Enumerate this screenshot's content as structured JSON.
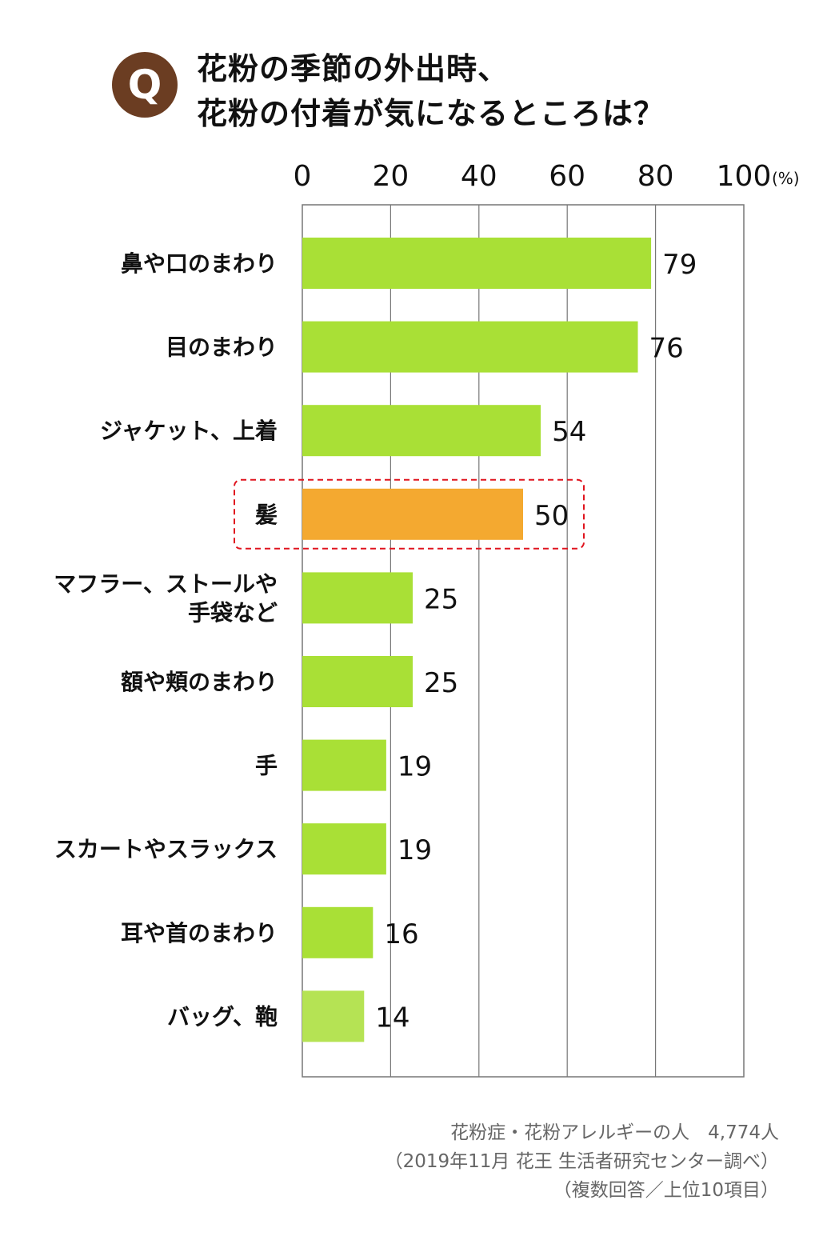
{
  "header": {
    "badge": "Q",
    "title_line1": "花粉の季節の外出時、",
    "title_line2": "花粉の付着が気になるところは？"
  },
  "colors": {
    "bar": "#a9e036",
    "bar_last": "#b5e354",
    "highlight_bar": "#f4a930",
    "highlight_box": "#e0141e",
    "badge": "#6b3d22",
    "grid": "#777777"
  },
  "chart_data": {
    "type": "bar",
    "orientation": "horizontal",
    "unit": "(%)",
    "xlim": [
      0,
      100
    ],
    "ticks": [
      0,
      20,
      40,
      60,
      80,
      100
    ],
    "categories": [
      [
        "鼻や口のまわり"
      ],
      [
        "目のまわり"
      ],
      [
        "ジャケット、上着"
      ],
      [
        "髪"
      ],
      [
        "マフラー、ストールや",
        "手袋など"
      ],
      [
        "額や頬のまわり"
      ],
      [
        "手"
      ],
      [
        "スカートやスラックス"
      ],
      [
        "耳や首のまわり"
      ],
      [
        "バッグ、鞄"
      ]
    ],
    "values": [
      79,
      76,
      54,
      50,
      25,
      25,
      19,
      19,
      16,
      14
    ],
    "highlight_index": 3,
    "grid": true
  },
  "footnote": {
    "line1": "花粉症・花粉アレルギーの人　4,774人",
    "line2": "（2019年11月 花王 生活者研究センター調べ）",
    "line3": "（複数回答／上位10項目）"
  }
}
